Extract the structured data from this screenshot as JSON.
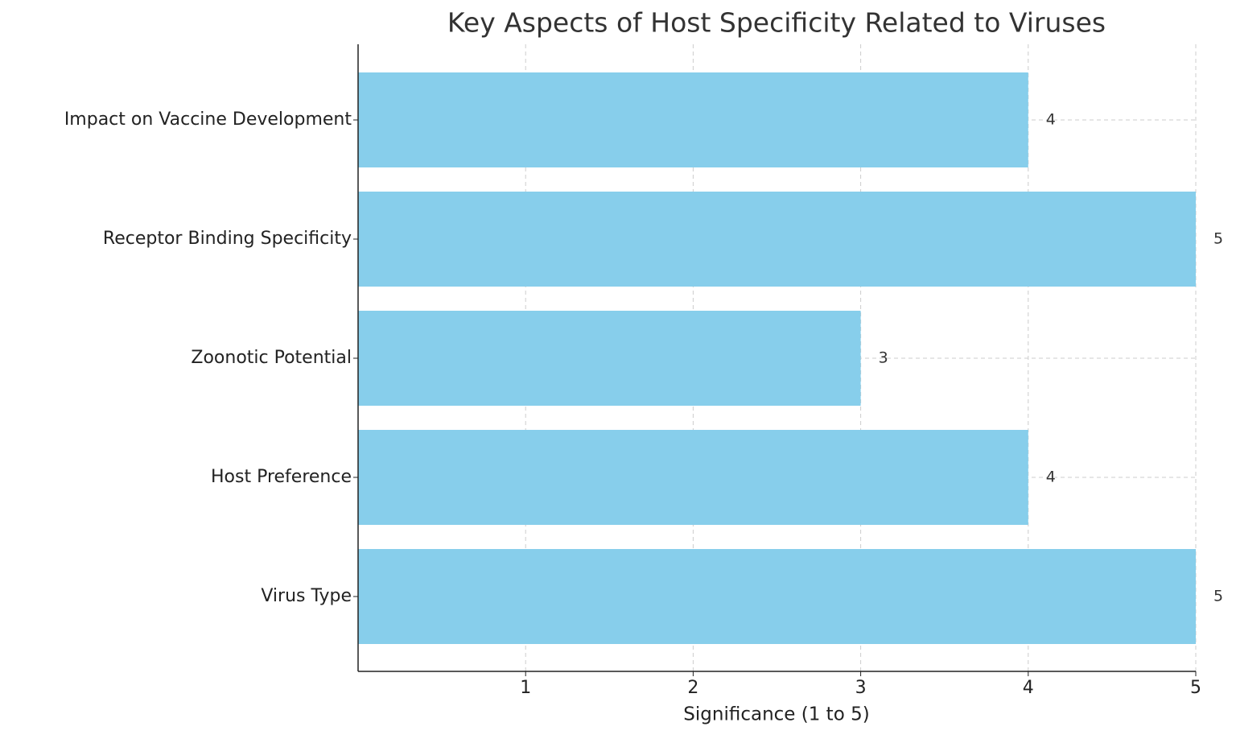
{
  "chart_data": {
    "type": "bar",
    "orientation": "horizontal",
    "title": "Key Aspects of Host Specificity Related to Viruses",
    "xlabel": "Significance (1 to 5)",
    "categories": [
      "Impact on Vaccine Development",
      "Receptor Binding Specificity",
      "Zoonotic Potential",
      "Host Preference",
      "Virus Type"
    ],
    "values": [
      4,
      5,
      3,
      4,
      5
    ],
    "color": "#87ceeb",
    "xlim": [
      0,
      5
    ],
    "xticks": [
      1,
      2,
      3,
      4,
      5
    ],
    "grid": true
  }
}
